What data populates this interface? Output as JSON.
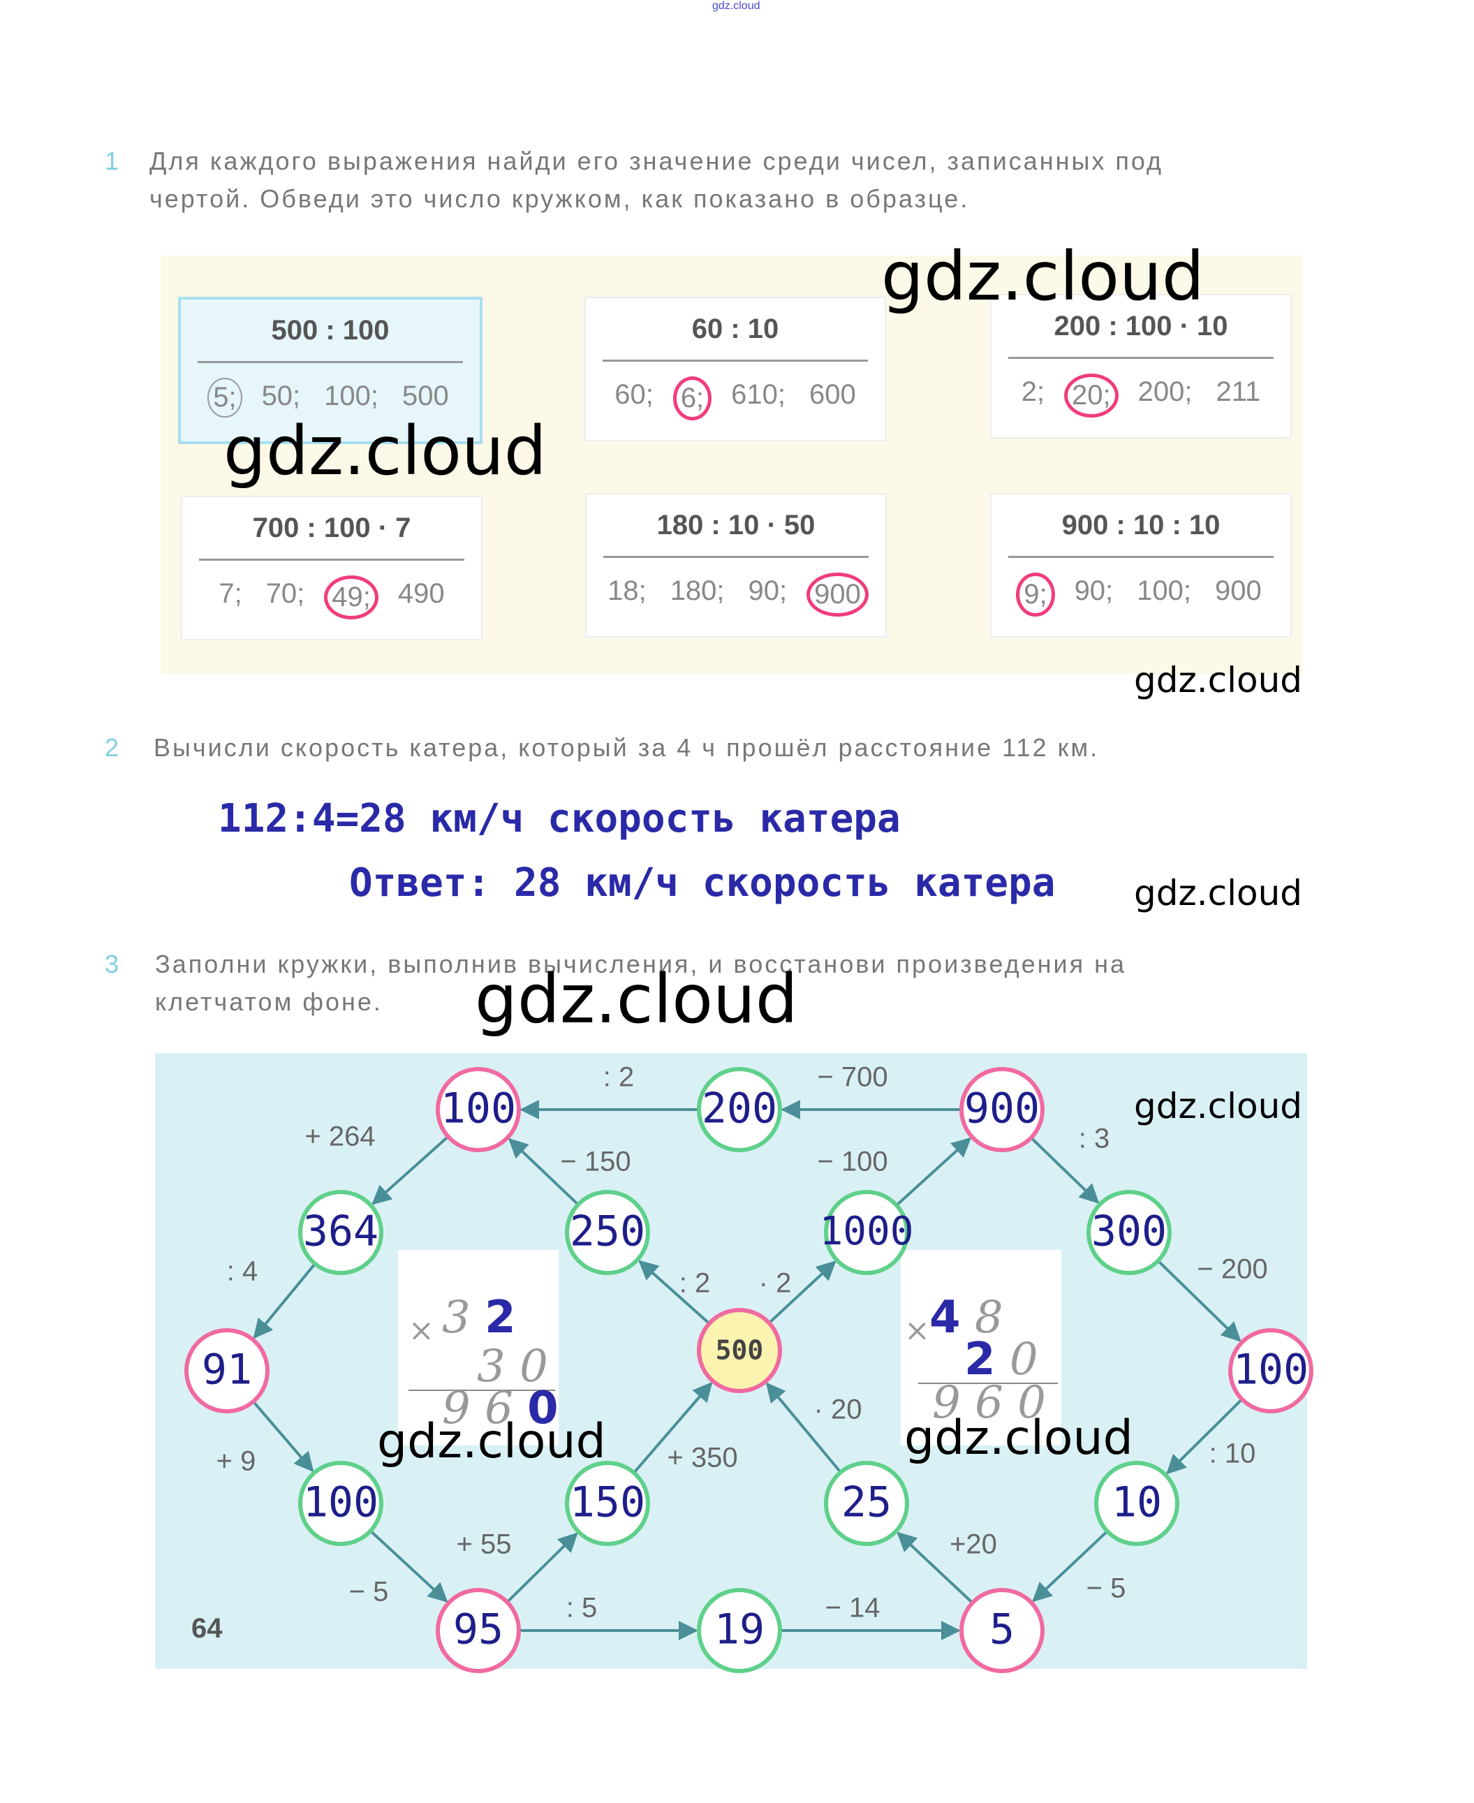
{
  "watermark_top": "gdz.cloud",
  "watermark": "gdz.cloud",
  "task1": {
    "number": "1",
    "instruction_line1": "Для каждого выражения найди его значение среди чисел, записанных под",
    "instruction_line2": "чертой. Обведи это число кружком, как показано в образце.",
    "boxes": [
      {
        "expression": "500 : 100",
        "options": [
          "5;",
          "50;",
          "100;",
          "500"
        ],
        "circled": 0,
        "sample": true
      },
      {
        "expression": "60 : 10",
        "options": [
          "60;",
          "6;",
          "610;",
          "600"
        ],
        "circled": 1
      },
      {
        "expression": "200 : 100 · 10",
        "options": [
          "2;",
          "20;",
          "200;",
          "211"
        ],
        "circled": 1
      },
      {
        "expression": "700 : 100 · 7",
        "options": [
          "7;",
          "70;",
          "49;",
          "490"
        ],
        "circled": 2
      },
      {
        "expression": "180 : 10 · 50",
        "options": [
          "18;",
          "180;",
          "90;",
          "900"
        ],
        "circled": 3
      },
      {
        "expression": "900 : 10 : 10",
        "options": [
          "9;",
          "90;",
          "100;",
          "900"
        ],
        "circled": 0
      }
    ]
  },
  "task2": {
    "number": "2",
    "instruction": "Вычисли скорость катера, который за 4 ч прошёл расстояние 112 км.",
    "solution": "112:4=28 км/ч скорость катера",
    "answer": "Ответ: 28 км/ч скорость катера"
  },
  "task3": {
    "number": "3",
    "instruction_line1": "Заполни кружки, выполнив вычисления, и восстанови произведения на",
    "instruction_line2": "клетчатом фоне.",
    "nodes": [
      "100",
      "200",
      "900",
      "364",
      "250",
      "1000",
      "300",
      "91",
      "500",
      "100",
      "100",
      "150",
      "25",
      "10",
      "95",
      "19",
      "5"
    ],
    "node_ring": [
      "pink",
      "green",
      "pink",
      "green",
      "green",
      "green",
      "green",
      "pink",
      "pink",
      "pink",
      "green",
      "green",
      "green",
      "green",
      "pink",
      "green",
      "pink"
    ],
    "edges": [
      {
        "from": 2,
        "to": 1,
        "label": "− 700"
      },
      {
        "from": 1,
        "to": 0,
        "label": ": 2"
      },
      {
        "from": 0,
        "to": 3,
        "label": "+ 264"
      },
      {
        "from": 3,
        "to": 7,
        "label": ": 4"
      },
      {
        "from": 7,
        "to": 10,
        "label": "+ 9"
      },
      {
        "from": 10,
        "to": 14,
        "label": "− 5"
      },
      {
        "from": 14,
        "to": 15,
        "label": ": 5"
      },
      {
        "from": 15,
        "to": 16,
        "label": "− 14"
      },
      {
        "from": 16,
        "to": 12,
        "label": "+20"
      },
      {
        "from": 12,
        "to": 8,
        "label": "· 20"
      },
      {
        "from": 8,
        "to": 4,
        "label": ": 2"
      },
      {
        "from": 4,
        "to": 0,
        "label": "− 150"
      },
      {
        "from": 8,
        "to": 5,
        "label": "· 2"
      },
      {
        "from": 5,
        "to": 2,
        "label": "− 100"
      },
      {
        "from": 2,
        "to": 6,
        "label": ": 3"
      },
      {
        "from": 6,
        "to": 9,
        "label": "− 200"
      },
      {
        "from": 9,
        "to": 13,
        "label": ": 10"
      },
      {
        "from": 13,
        "to": 16,
        "label": "− 5"
      },
      {
        "from": 14,
        "to": 11,
        "label": "+ 55"
      },
      {
        "from": 11,
        "to": 8,
        "label": "+ 350"
      }
    ],
    "mult_left": {
      "sign": "×",
      "r1a": "3",
      "r1b": "2",
      "r2a": "3",
      "r2b": "0",
      "r3a": "9",
      "r3b": "6",
      "r3c": "0"
    },
    "mult_right": {
      "sign": "×",
      "r1a": "4",
      "r1b": "8",
      "r2a": "2",
      "r2b": "0",
      "r3a": "9",
      "r3b": "6",
      "r3c": "0"
    }
  },
  "page_number": "64",
  "colors": {
    "pink": "#f06aa0",
    "green": "#5fd08a",
    "answer_blue": "#2a2aa8",
    "node_text": "#1e1e8a",
    "arrow": "#4a8f98",
    "bg_diagram": "#d9f1f5"
  }
}
